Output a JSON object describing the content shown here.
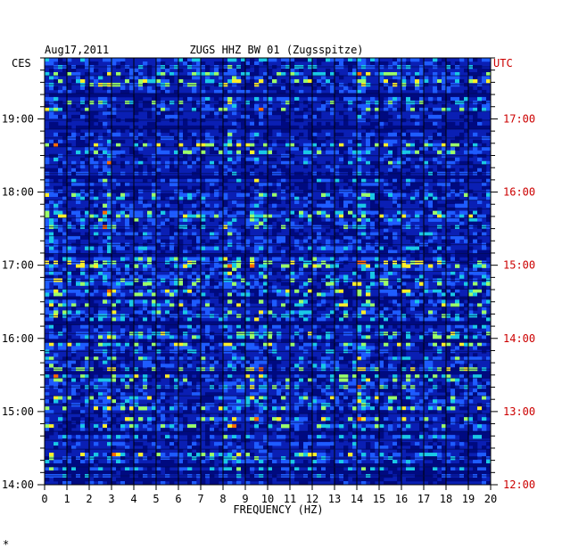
{
  "chart_data": {
    "type": "heatmap",
    "title": "ZUGS HHZ BW 01 (Zugsspitze)",
    "date": "Aug17,2011",
    "xlabel": "FREQUENCY (HZ)",
    "left_label": "CES",
    "right_label": "UTC",
    "xlim": [
      0,
      20
    ],
    "x_ticks": [
      "0",
      "1",
      "2",
      "3",
      "4",
      "5",
      "6",
      "7",
      "8",
      "9",
      "10",
      "11",
      "12",
      "13",
      "14",
      "15",
      "16",
      "17",
      "18",
      "19",
      "20"
    ],
    "left_ticks": [
      "19:00",
      "18:00",
      "17:00",
      "16:00",
      "15:00",
      "14:00"
    ],
    "right_ticks": [
      "17:00",
      "16:00",
      "15:00",
      "14:00",
      "13:00",
      "12:00"
    ],
    "time_range_local": [
      "14:00",
      "19:50"
    ],
    "colors": {
      "background": "#0a1fb4",
      "grid": "#000000",
      "right_axis": "#cc0000",
      "colormap": [
        "#000a80",
        "#0a1fb4",
        "#1e5cff",
        "#19c8e6",
        "#9bff6a",
        "#ffee2a",
        "#ff6a00"
      ]
    }
  },
  "footnote": "*"
}
